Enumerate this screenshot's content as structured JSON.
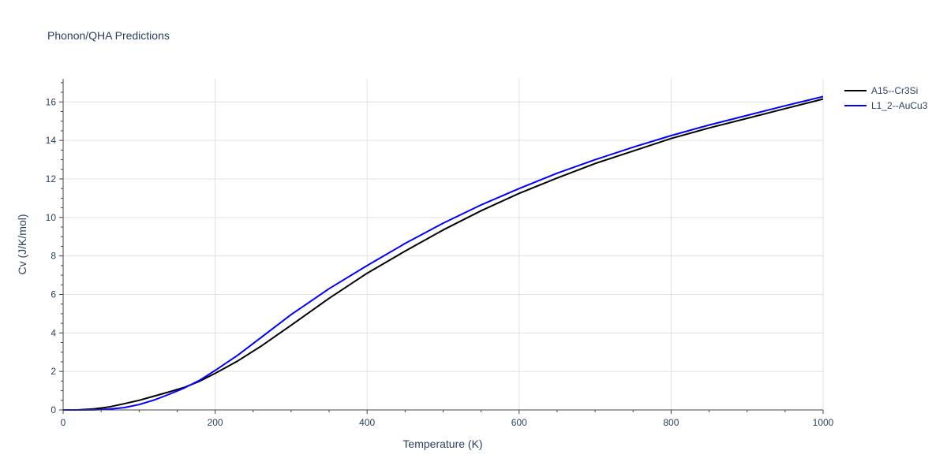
{
  "chart_data": {
    "type": "line",
    "title": "Phonon/QHA Predictions",
    "xlabel": "Temperature (K)",
    "ylabel": "Cv (J/K/mol)",
    "xlim": [
      0,
      1000
    ],
    "ylim": [
      0,
      17.2
    ],
    "x_ticks": [
      0,
      200,
      400,
      600,
      800,
      1000
    ],
    "y_ticks": [
      0,
      2,
      4,
      6,
      8,
      10,
      12,
      14,
      16
    ],
    "grid": true,
    "legend_position": "top-right",
    "series": [
      {
        "name": "A15--Cr3Si",
        "color": "#000000",
        "points": [
          [
            0,
            0
          ],
          [
            20,
            0.005
          ],
          [
            40,
            0.05
          ],
          [
            60,
            0.15
          ],
          [
            80,
            0.32
          ],
          [
            100,
            0.5
          ],
          [
            120,
            0.72
          ],
          [
            140,
            0.94
          ],
          [
            160,
            1.18
          ],
          [
            180,
            1.5
          ],
          [
            200,
            1.9
          ],
          [
            230,
            2.55
          ],
          [
            260,
            3.3
          ],
          [
            300,
            4.4
          ],
          [
            350,
            5.8
          ],
          [
            400,
            7.1
          ],
          [
            450,
            8.25
          ],
          [
            500,
            9.35
          ],
          [
            550,
            10.35
          ],
          [
            600,
            11.25
          ],
          [
            650,
            12.05
          ],
          [
            700,
            12.8
          ],
          [
            750,
            13.45
          ],
          [
            800,
            14.1
          ],
          [
            850,
            14.65
          ],
          [
            900,
            15.15
          ],
          [
            950,
            15.65
          ],
          [
            1000,
            16.15
          ]
        ]
      },
      {
        "name": "L1_2--AuCu3",
        "color": "#0000ff",
        "points": [
          [
            0,
            0
          ],
          [
            20,
            0.0
          ],
          [
            40,
            0.005
          ],
          [
            60,
            0.04
          ],
          [
            80,
            0.12
          ],
          [
            100,
            0.28
          ],
          [
            120,
            0.52
          ],
          [
            140,
            0.82
          ],
          [
            160,
            1.15
          ],
          [
            180,
            1.55
          ],
          [
            200,
            2.05
          ],
          [
            230,
            2.85
          ],
          [
            260,
            3.75
          ],
          [
            300,
            4.95
          ],
          [
            350,
            6.3
          ],
          [
            400,
            7.5
          ],
          [
            450,
            8.65
          ],
          [
            500,
            9.7
          ],
          [
            550,
            10.65
          ],
          [
            600,
            11.5
          ],
          [
            650,
            12.3
          ],
          [
            700,
            13.0
          ],
          [
            750,
            13.65
          ],
          [
            800,
            14.25
          ],
          [
            850,
            14.8
          ],
          [
            900,
            15.3
          ],
          [
            950,
            15.8
          ],
          [
            1000,
            16.28
          ]
        ]
      }
    ]
  }
}
